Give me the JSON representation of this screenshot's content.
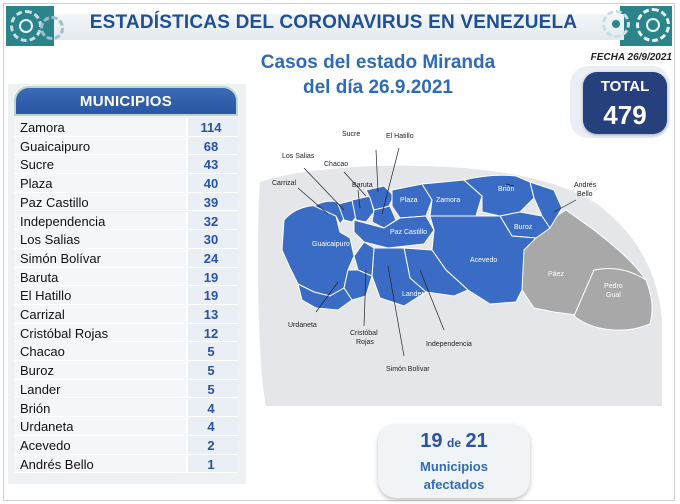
{
  "banner": {
    "title": "ESTADÍSTICAS DEL CORONAVIRUS EN VENEZUELA"
  },
  "subtitle": {
    "line1": "Casos del estado Miranda",
    "line2": "del día 26.9.2021"
  },
  "date_label": "FECHA 26/9/2021",
  "total": {
    "label": "TOTAL",
    "value": "479"
  },
  "municipios": {
    "header": "MUNICIPIOS",
    "rows": [
      {
        "name": "Zamora",
        "value": "114"
      },
      {
        "name": "Guaicaipuro",
        "value": "68"
      },
      {
        "name": "Sucre",
        "value": "43"
      },
      {
        "name": "Plaza",
        "value": "40"
      },
      {
        "name": "Paz Castillo",
        "value": "39"
      },
      {
        "name": "Independencia",
        "value": "32"
      },
      {
        "name": "Los Salias",
        "value": "30"
      },
      {
        "name": "Simón Bolívar",
        "value": "24"
      },
      {
        "name": "Baruta",
        "value": "19"
      },
      {
        "name": "El Hatillo",
        "value": "19"
      },
      {
        "name": "Carrizal",
        "value": "13"
      },
      {
        "name": "Cristóbal Rojas",
        "value": "12"
      },
      {
        "name": "Chacao",
        "value": "5"
      },
      {
        "name": "Buroz",
        "value": "5"
      },
      {
        "name": "Lander",
        "value": "5"
      },
      {
        "name": "Brión",
        "value": "4"
      },
      {
        "name": "Urdaneta",
        "value": "4"
      },
      {
        "name": "Acevedo",
        "value": "2"
      },
      {
        "name": "Andrés Bello",
        "value": "1"
      }
    ]
  },
  "map": {
    "labels": {
      "sucre": "Sucre",
      "el_hatillo": "El Hatillo",
      "los_salias": "Los Salias",
      "chacao": "Chacao",
      "carrizal": "Carrizal",
      "baruta": "Baruta",
      "plaza": "Plaza",
      "zamora": "Zamora",
      "brion": "Brión",
      "andres_bello_1": "Andrés",
      "andres_bello_2": "Bello",
      "paz_castillo": "Paz Castillo",
      "guaicaipuro": "Guaicaipuro",
      "buroz": "Buroz",
      "acevedo": "Acevedo",
      "paez": "Páez",
      "pedro_gual_1": "Pedro",
      "pedro_gual_2": "Gual",
      "lander": "Lander",
      "urdaneta": "Urdaneta",
      "cristobal_rojas_1": "Cristóbal",
      "cristobal_rojas_2": "Rojas",
      "independencia": "Independencia",
      "simon_bolivar": "Simón Bolívar"
    },
    "colors": {
      "affected": "#3a6cc6",
      "unaffected": "#a8a8a8",
      "shadow": "#e4e6ea"
    }
  },
  "affected": {
    "count": "19",
    "of_word": "de",
    "total": "21",
    "line1": "Municipios",
    "line2": "afectados"
  }
}
